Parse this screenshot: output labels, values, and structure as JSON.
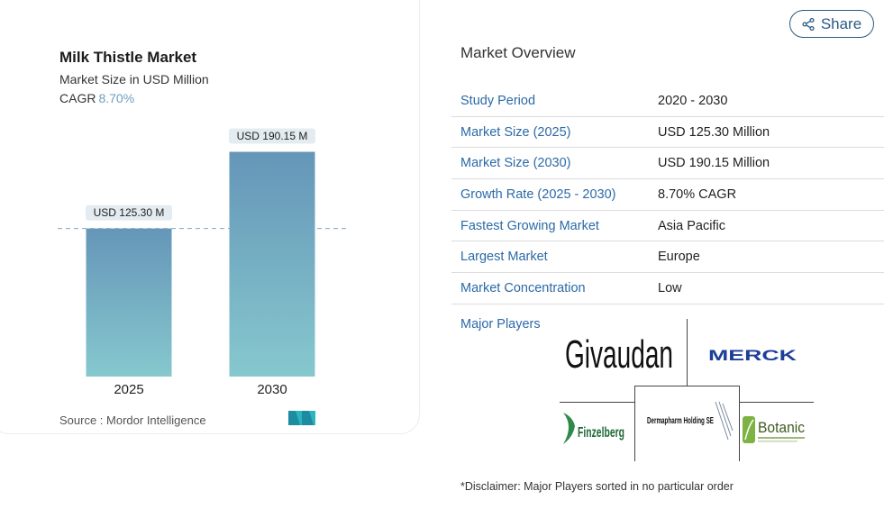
{
  "chart_data": {
    "type": "bar",
    "title": "Milk Thistle Market",
    "subtitle": "Market Size in USD Million",
    "cagr_label": "CAGR",
    "cagr_value": "8.70%",
    "categories": [
      "2025",
      "2030"
    ],
    "values": [
      125.3,
      190.15
    ],
    "data_labels": [
      "USD 125.30 M",
      "USD 190.15 M"
    ],
    "ylim": [
      0,
      200
    ],
    "grid": false,
    "reference_line": "dashed line at the 2025 value",
    "colors": {
      "bar_top": "#6596b8",
      "bar_bottom": "#86c8ce",
      "label_bg": "#e4ecf1"
    }
  },
  "source": "Source :  Mordor Intelligence",
  "share": {
    "label": "Share",
    "icon": "share-icon"
  },
  "overview": {
    "title": "Market Overview",
    "rows": [
      {
        "label": "Study Period",
        "value": "2020 - 2030"
      },
      {
        "label": "Market Size (2025)",
        "value": "USD 125.30 Million"
      },
      {
        "label": "Market Size (2030)",
        "value": "USD 190.15 Million"
      },
      {
        "label": "Growth Rate (2025 - 2030)",
        "value": "8.70% CAGR"
      },
      {
        "label": "Fastest Growing Market",
        "value": "Asia Pacific"
      },
      {
        "label": "Largest Market",
        "value": "Europe"
      },
      {
        "label": "Market Concentration",
        "value": "Low"
      }
    ]
  },
  "players": {
    "label": "Major Players",
    "logos": [
      "Givaudan",
      "MERCK",
      "Finzelberg",
      "Dermapharm Holding SE",
      "Botanic"
    ]
  },
  "disclaimer": "*Disclaimer: Major Players sorted in no particular order",
  "colors": {
    "accent": "#2b6aa6",
    "cagr": "#6e9fc1"
  }
}
